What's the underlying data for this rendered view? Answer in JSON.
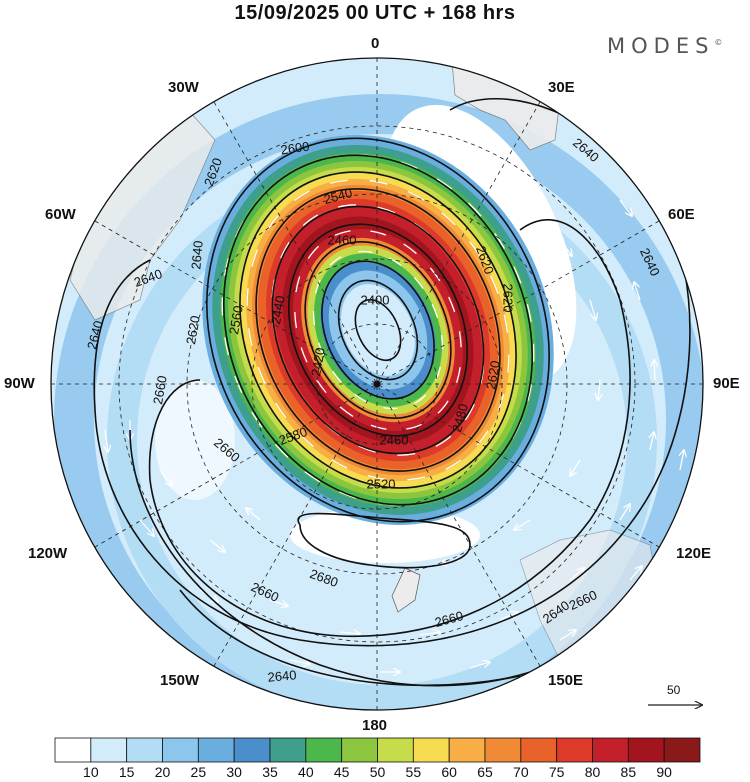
{
  "title": "15/09/2025  00 UTC  + 168 hrs",
  "brand": {
    "text": "MODES",
    "mark": "©"
  },
  "longitude_labels": {
    "top": "0",
    "bottom": "180",
    "w30": "30W",
    "e30": "30E",
    "w60": "60W",
    "e60": "60E",
    "w90": "90W",
    "e90": "90E",
    "w120": "120W",
    "e120": "120E",
    "w150": "150W",
    "e150": "150E"
  },
  "contour_labels": [
    "2600",
    "2620",
    "2640",
    "2640",
    "2640",
    "2640",
    "2620",
    "2620",
    "2660",
    "2660",
    "2660",
    "2540",
    "2460",
    "2400",
    "2440",
    "2420",
    "2640",
    "2620",
    "2620",
    "2560",
    "2480",
    "2460",
    "2580",
    "2520",
    "2680",
    "2660",
    "2660",
    "2640",
    "2640"
  ],
  "vector_reference": {
    "value": "50"
  },
  "colorbar": {
    "ticks": [
      "10",
      "15",
      "20",
      "25",
      "30",
      "35",
      "40",
      "45",
      "50",
      "55",
      "60",
      "65",
      "70",
      "75",
      "80",
      "85",
      "90"
    ],
    "colors": [
      "#ffffff",
      "#d3ecfb",
      "#b3dcf5",
      "#8dc6ec",
      "#6aaee0",
      "#4a8fcb",
      "#3ea08c",
      "#4cb74a",
      "#8cc63f",
      "#c6dc4a",
      "#f7dc52",
      "#f6ae45",
      "#f18a34",
      "#e8622a",
      "#dd3a2a",
      "#c4202b",
      "#a3151e",
      "#8a1a1a"
    ]
  }
}
